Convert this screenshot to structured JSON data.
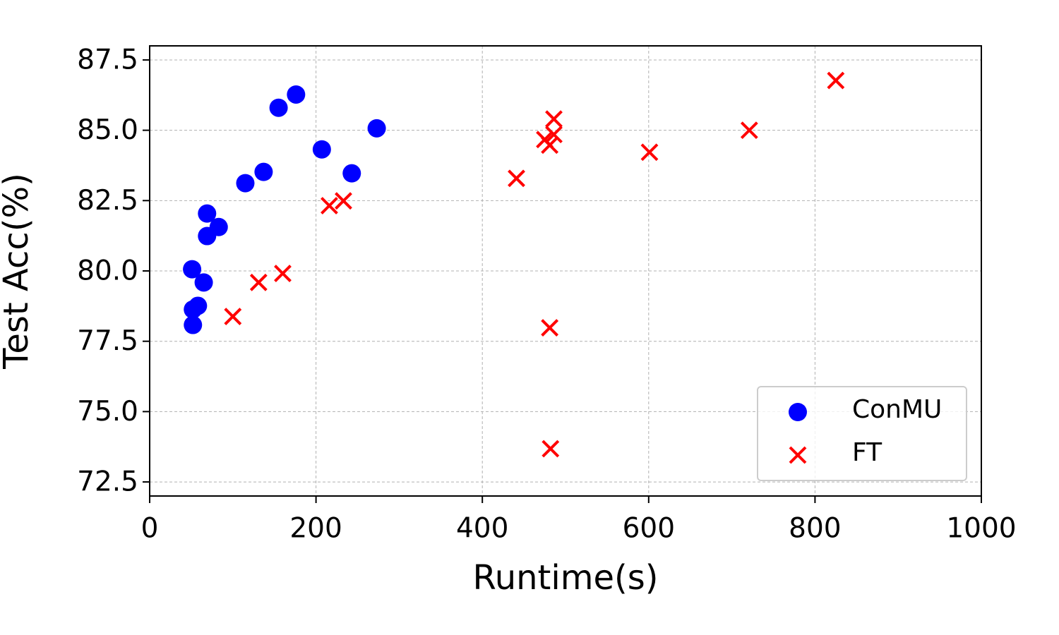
{
  "chart_data": {
    "type": "scatter",
    "x_label": "Runtime(s)",
    "y_label": "Test Acc(%)",
    "xlim": [
      0,
      1000
    ],
    "xticks": [
      0,
      200,
      400,
      600,
      800,
      1000
    ],
    "ylim": [
      72,
      88
    ],
    "yticks": [
      72.5,
      {
        "value": 75,
        "label": "75.0"
      },
      77.5,
      {
        "value": 80,
        "label": "80.0"
      },
      82.5,
      {
        "value": 85,
        "label": "85.0"
      },
      87.5
    ],
    "grid": true,
    "legend": "lower right",
    "series": [
      {
        "name": "ConMU",
        "color": "#0000ff",
        "marker": "o",
        "x": [
          51,
          65,
          69,
          83,
          69,
          58,
          52,
          52,
          115,
          137,
          155,
          176,
          207,
          243,
          273
        ],
        "values": [
          80.06,
          79.59,
          82.04,
          81.56,
          81.24,
          78.76,
          78.63,
          78.08,
          83.12,
          83.52,
          85.8,
          86.27,
          84.32,
          83.47,
          85.07
        ]
      },
      {
        "name": "FT",
        "color": "#ff0000",
        "marker": "x",
        "x": [
          100,
          131,
          160,
          216,
          233,
          441,
          475,
          481,
          486,
          486,
          481,
          482,
          601,
          721,
          825
        ],
        "values": [
          78.38,
          79.59,
          79.91,
          82.32,
          82.49,
          83.29,
          84.67,
          84.47,
          84.85,
          85.4,
          77.98,
          73.68,
          84.22,
          85.0,
          86.77
        ]
      }
    ]
  }
}
